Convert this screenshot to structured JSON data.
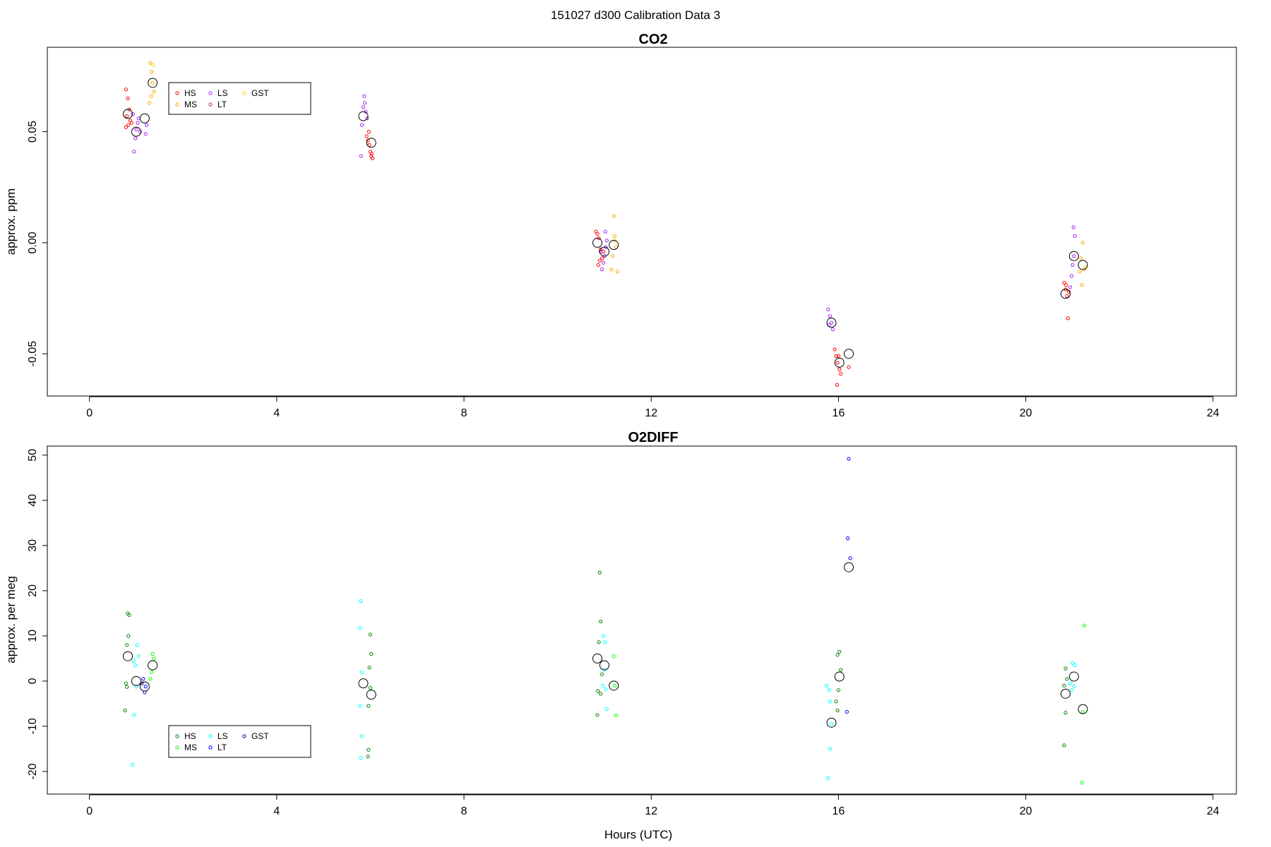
{
  "figure_title": "151027   d300   Calibration Data 3",
  "x_axis_label": "Hours (UTC)",
  "chart_data": [
    {
      "type": "scatter",
      "title": "CO2",
      "xlabel": "",
      "ylabel": "approx. ppm",
      "xlim": [
        -0.9,
        24.5
      ],
      "ylim": [
        -0.069,
        0.088
      ],
      "xticks": [
        0,
        4,
        8,
        12,
        16,
        20,
        24
      ],
      "yticks": [
        -0.05,
        0.0,
        0.05
      ],
      "ytick_labels": [
        "-0.05",
        "0.00",
        "0.05"
      ],
      "grid": false,
      "legend_position": "top-left",
      "legend": [
        {
          "label": "HS",
          "color": "#ff0000"
        },
        {
          "label": "MS",
          "color": "#ffa500"
        },
        {
          "label": "LS",
          "color": "#a020f0"
        },
        {
          "label": "LT",
          "color": "#b03060"
        },
        {
          "label": "GST",
          "color": "#ffd700"
        }
      ],
      "series": [
        {
          "name": "HS",
          "color": "#ff0000",
          "points": [
            [
              0.78,
              0.069
            ],
            [
              0.82,
              0.065
            ],
            [
              0.85,
              0.06
            ],
            [
              0.8,
              0.057
            ],
            [
              0.87,
              0.055
            ],
            [
              0.83,
              0.053
            ],
            [
              0.9,
              0.054
            ],
            [
              0.78,
              0.052
            ],
            [
              5.92,
              0.048
            ],
            [
              5.95,
              0.046
            ],
            [
              5.98,
              0.044
            ],
            [
              6.0,
              0.041
            ],
            [
              6.02,
              0.039
            ],
            [
              6.05,
              0.038
            ],
            [
              5.97,
              0.05
            ],
            [
              6.03,
              0.04
            ],
            [
              10.82,
              0.005
            ],
            [
              10.85,
              0.004
            ],
            [
              10.88,
              0.002
            ],
            [
              10.92,
              -0.003
            ],
            [
              10.95,
              -0.007
            ],
            [
              10.9,
              -0.008
            ],
            [
              10.98,
              -0.004
            ],
            [
              10.87,
              -0.01
            ],
            [
              15.92,
              -0.048
            ],
            [
              15.95,
              -0.051
            ],
            [
              15.98,
              -0.054
            ],
            [
              16.02,
              -0.057
            ],
            [
              16.05,
              -0.059
            ],
            [
              15.97,
              -0.064
            ],
            [
              16.22,
              -0.056
            ],
            [
              16.0,
              -0.051
            ],
            [
              20.82,
              -0.018
            ],
            [
              20.85,
              -0.021
            ],
            [
              20.88,
              -0.024
            ],
            [
              20.92,
              -0.022
            ],
            [
              20.86,
              -0.019
            ],
            [
              20.9,
              -0.034
            ]
          ]
        },
        {
          "name": "MS",
          "color": "#ffa500",
          "points": [
            [
              1.3,
              0.081
            ],
            [
              1.33,
              0.077
            ],
            [
              1.35,
              0.072
            ],
            [
              1.38,
              0.068
            ],
            [
              1.32,
              0.066
            ],
            [
              1.28,
              0.063
            ],
            [
              11.2,
              0.012
            ],
            [
              11.22,
              0.003
            ],
            [
              11.25,
              -0.002
            ],
            [
              11.18,
              -0.006
            ],
            [
              11.28,
              -0.013
            ],
            [
              11.15,
              -0.012
            ],
            [
              21.22,
              0.0
            ],
            [
              21.18,
              -0.007
            ],
            [
              21.25,
              -0.012
            ],
            [
              21.2,
              -0.019
            ],
            [
              21.15,
              -0.013
            ]
          ]
        },
        {
          "name": "LS",
          "color": "#a020f0",
          "points": [
            [
              0.95,
              0.041
            ],
            [
              0.98,
              0.047
            ],
            [
              1.0,
              0.051
            ],
            [
              1.03,
              0.054
            ],
            [
              1.05,
              0.056
            ],
            [
              1.08,
              0.05
            ],
            [
              1.2,
              0.049
            ],
            [
              1.22,
              0.053
            ],
            [
              0.93,
              0.058
            ],
            [
              5.8,
              0.039
            ],
            [
              5.82,
              0.053
            ],
            [
              5.85,
              0.061
            ],
            [
              5.87,
              0.066
            ],
            [
              5.88,
              0.063
            ],
            [
              5.9,
              0.059
            ],
            [
              5.93,
              0.056
            ],
            [
              10.95,
              -0.012
            ],
            [
              10.98,
              -0.009
            ],
            [
              11.0,
              -0.006
            ],
            [
              11.03,
              -0.002
            ],
            [
              11.05,
              0.001
            ],
            [
              11.02,
              0.005
            ],
            [
              10.92,
              -0.004
            ],
            [
              15.78,
              -0.03
            ],
            [
              15.82,
              -0.033
            ],
            [
              15.85,
              -0.036
            ],
            [
              15.88,
              -0.039
            ],
            [
              15.8,
              -0.037
            ],
            [
              20.98,
              -0.015
            ],
            [
              21.0,
              -0.01
            ],
            [
              21.03,
              -0.006
            ],
            [
              21.05,
              0.003
            ],
            [
              21.02,
              0.007
            ],
            [
              20.95,
              -0.02
            ]
          ]
        },
        {
          "name": "LT",
          "color": "#b03060",
          "points": []
        },
        {
          "name": "GST",
          "color": "#ffd700",
          "points": [
            [
              1.36,
              0.08
            ],
            [
              11.22,
              0.001
            ],
            [
              21.28,
              -0.011
            ]
          ]
        },
        {
          "name": "",
          "color": "#000000",
          "marker": "mean",
          "points": [
            [
              0.82,
              0.058
            ],
            [
              1.0,
              0.05
            ],
            [
              1.18,
              0.056
            ],
            [
              1.35,
              0.072
            ],
            [
              5.85,
              0.057
            ],
            [
              6.02,
              0.045
            ],
            [
              10.85,
              0.0
            ],
            [
              11.0,
              -0.004
            ],
            [
              11.2,
              -0.001
            ],
            [
              15.85,
              -0.036
            ],
            [
              16.02,
              -0.054
            ],
            [
              16.22,
              -0.05
            ],
            [
              20.85,
              -0.023
            ],
            [
              21.03,
              -0.006
            ],
            [
              21.22,
              -0.01
            ]
          ]
        }
      ]
    },
    {
      "type": "scatter",
      "title": "O2DIFF",
      "xlabel": "Hours (UTC)",
      "ylabel": "approx. per meg",
      "xlim": [
        -0.9,
        24.5
      ],
      "ylim": [
        -25,
        52
      ],
      "xticks": [
        0,
        4,
        8,
        12,
        16,
        20,
        24
      ],
      "yticks": [
        -20,
        -10,
        0,
        10,
        20,
        30,
        40,
        50
      ],
      "ytick_labels": [
        "-20",
        "-10",
        "0",
        "10",
        "20",
        "30",
        "40",
        "50"
      ],
      "grid": false,
      "legend_position": "bottom-left",
      "legend": [
        {
          "label": "HS",
          "color": "#008000"
        },
        {
          "label": "MS",
          "color": "#00ff00"
        },
        {
          "label": "LS",
          "color": "#00ffff"
        },
        {
          "label": "LT",
          "color": "#0000ff"
        },
        {
          "label": "GST",
          "color": "#00008b"
        }
      ],
      "series": [
        {
          "name": "HS",
          "color": "#008000",
          "points": [
            [
              0.82,
              15.0
            ],
            [
              0.85,
              14.6
            ],
            [
              0.83,
              10.0
            ],
            [
              0.8,
              8.0
            ],
            [
              0.78,
              -0.5
            ],
            [
              0.8,
              -1.3
            ],
            [
              0.76,
              -6.5
            ],
            [
              6.0,
              10.3
            ],
            [
              6.02,
              6.0
            ],
            [
              5.98,
              3.0
            ],
            [
              6.0,
              -1.5
            ],
            [
              5.96,
              -5.5
            ],
            [
              5.95,
              -16.7
            ],
            [
              5.96,
              -15.2
            ],
            [
              10.9,
              24.0
            ],
            [
              10.92,
              13.2
            ],
            [
              10.88,
              8.6
            ],
            [
              10.95,
              1.5
            ],
            [
              10.92,
              -2.8
            ],
            [
              10.86,
              -2.2
            ],
            [
              10.85,
              -7.5
            ],
            [
              16.02,
              6.5
            ],
            [
              15.98,
              5.8
            ],
            [
              16.05,
              2.5
            ],
            [
              16.0,
              -2.0
            ],
            [
              15.95,
              -4.5
            ],
            [
              15.98,
              -6.5
            ],
            [
              20.85,
              2.8
            ],
            [
              20.88,
              0.5
            ],
            [
              20.82,
              -1.0
            ],
            [
              20.85,
              -7.0
            ],
            [
              20.82,
              -14.2
            ]
          ]
        },
        {
          "name": "MS",
          "color": "#00ff00",
          "points": [
            [
              1.35,
              6.0
            ],
            [
              1.38,
              5.0
            ],
            [
              1.33,
              2.0
            ],
            [
              1.3,
              0.5
            ],
            [
              11.2,
              5.5
            ],
            [
              11.22,
              -1.0
            ],
            [
              11.25,
              -7.6
            ],
            [
              21.25,
              12.3
            ],
            [
              21.22,
              -6.8
            ],
            [
              21.2,
              -22.5
            ]
          ]
        },
        {
          "name": "LS",
          "color": "#00ffff",
          "points": [
            [
              0.95,
              4.5
            ],
            [
              0.98,
              3.5
            ],
            [
              1.02,
              8.0
            ],
            [
              1.05,
              5.5
            ],
            [
              1.0,
              -1.2
            ],
            [
              0.95,
              -7.5
            ],
            [
              0.92,
              -18.5
            ],
            [
              5.8,
              17.7
            ],
            [
              5.78,
              11.7
            ],
            [
              5.82,
              2.0
            ],
            [
              5.78,
              -5.5
            ],
            [
              5.82,
              -12.2
            ],
            [
              5.8,
              -17.0
            ],
            [
              10.98,
              10.0
            ],
            [
              11.02,
              8.6
            ],
            [
              11.0,
              2.5
            ],
            [
              11.03,
              -1.8
            ],
            [
              11.05,
              -6.2
            ],
            [
              10.97,
              -1.0
            ],
            [
              15.75,
              -1.0
            ],
            [
              15.8,
              -2.0
            ],
            [
              15.82,
              -4.5
            ],
            [
              15.85,
              -9.5
            ],
            [
              15.82,
              -15.0
            ],
            [
              15.78,
              -21.5
            ],
            [
              21.0,
              4.0
            ],
            [
              21.05,
              3.5
            ],
            [
              20.98,
              -2.0
            ],
            [
              21.03,
              -1.2
            ],
            [
              20.95,
              -0.5
            ]
          ]
        },
        {
          "name": "LT",
          "color": "#0000ff",
          "points": [
            [
              1.15,
              0.5
            ],
            [
              1.18,
              -2.5
            ],
            [
              1.2,
              -1.2
            ],
            [
              16.22,
              49.2
            ],
            [
              16.2,
              31.6
            ],
            [
              16.25,
              27.2
            ],
            [
              16.18,
              -6.8
            ]
          ]
        },
        {
          "name": "GST",
          "color": "#00008b",
          "points": [
            [
              1.12,
              -0.5
            ]
          ]
        },
        {
          "name": "",
          "color": "#000000",
          "marker": "mean",
          "points": [
            [
              0.82,
              5.5
            ],
            [
              1.0,
              0.0
            ],
            [
              1.18,
              -1.2
            ],
            [
              1.35,
              3.5
            ],
            [
              5.85,
              -0.5
            ],
            [
              6.02,
              -3.0
            ],
            [
              10.85,
              5.0
            ],
            [
              11.0,
              3.5
            ],
            [
              11.2,
              -1.0
            ],
            [
              15.85,
              -9.2
            ],
            [
              16.02,
              1.0
            ],
            [
              16.22,
              25.2
            ],
            [
              20.85,
              -2.8
            ],
            [
              21.03,
              1.0
            ],
            [
              21.22,
              -6.2
            ]
          ]
        }
      ]
    }
  ]
}
